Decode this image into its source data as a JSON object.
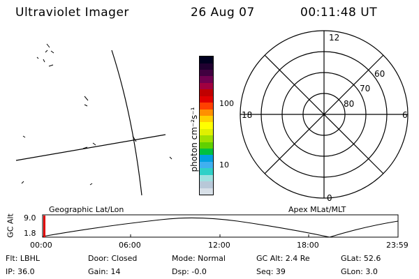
{
  "header": {
    "title": "Ultraviolet Imager",
    "date": "26 Aug 07",
    "time": "00:11:48 UT"
  },
  "colorbar": {
    "unit_label": "photon cm⁻²s⁻¹",
    "ticks": [
      "100",
      "10"
    ],
    "colors": [
      "#d8e0e8",
      "#b8c8d8",
      "#a0e0e0",
      "#30d0c8",
      "#40b0f0",
      "#00a0e0",
      "#00c040",
      "#60d000",
      "#a0e000",
      "#e0f000",
      "#ffff00",
      "#ffd000",
      "#ff9000",
      "#ff4000",
      "#e00000",
      "#c00000",
      "#a00040",
      "#700050",
      "#400040",
      "#200030",
      "#000020"
    ]
  },
  "polar": {
    "hour_labels": {
      "top": "12",
      "left": "18",
      "right": "6",
      "bottom": "0"
    },
    "lat_labels": [
      "60",
      "70",
      "80"
    ]
  },
  "altitude_plot": {
    "ylabel": "GC Alt",
    "yticks": [
      "9.0",
      "1.8"
    ],
    "left_title": "Geographic Lat/Lon",
    "right_title": "Apex MLat/MLT",
    "xticks": [
      "00:00",
      "06:00",
      "12:00",
      "18:00",
      "23:59"
    ]
  },
  "info": {
    "filter": "Flt: LBHL",
    "ip": "IP: 36.0",
    "door": "Door: Closed",
    "gain": "Gain: 14",
    "mode": "Mode: Normal",
    "dsp": "Dsp:   -0.0",
    "gcalt": "GC Alt: 2.4 Re",
    "seq": "Seq: 39",
    "glat": "GLat:  52.6",
    "glon": "GLon:   3.0"
  }
}
